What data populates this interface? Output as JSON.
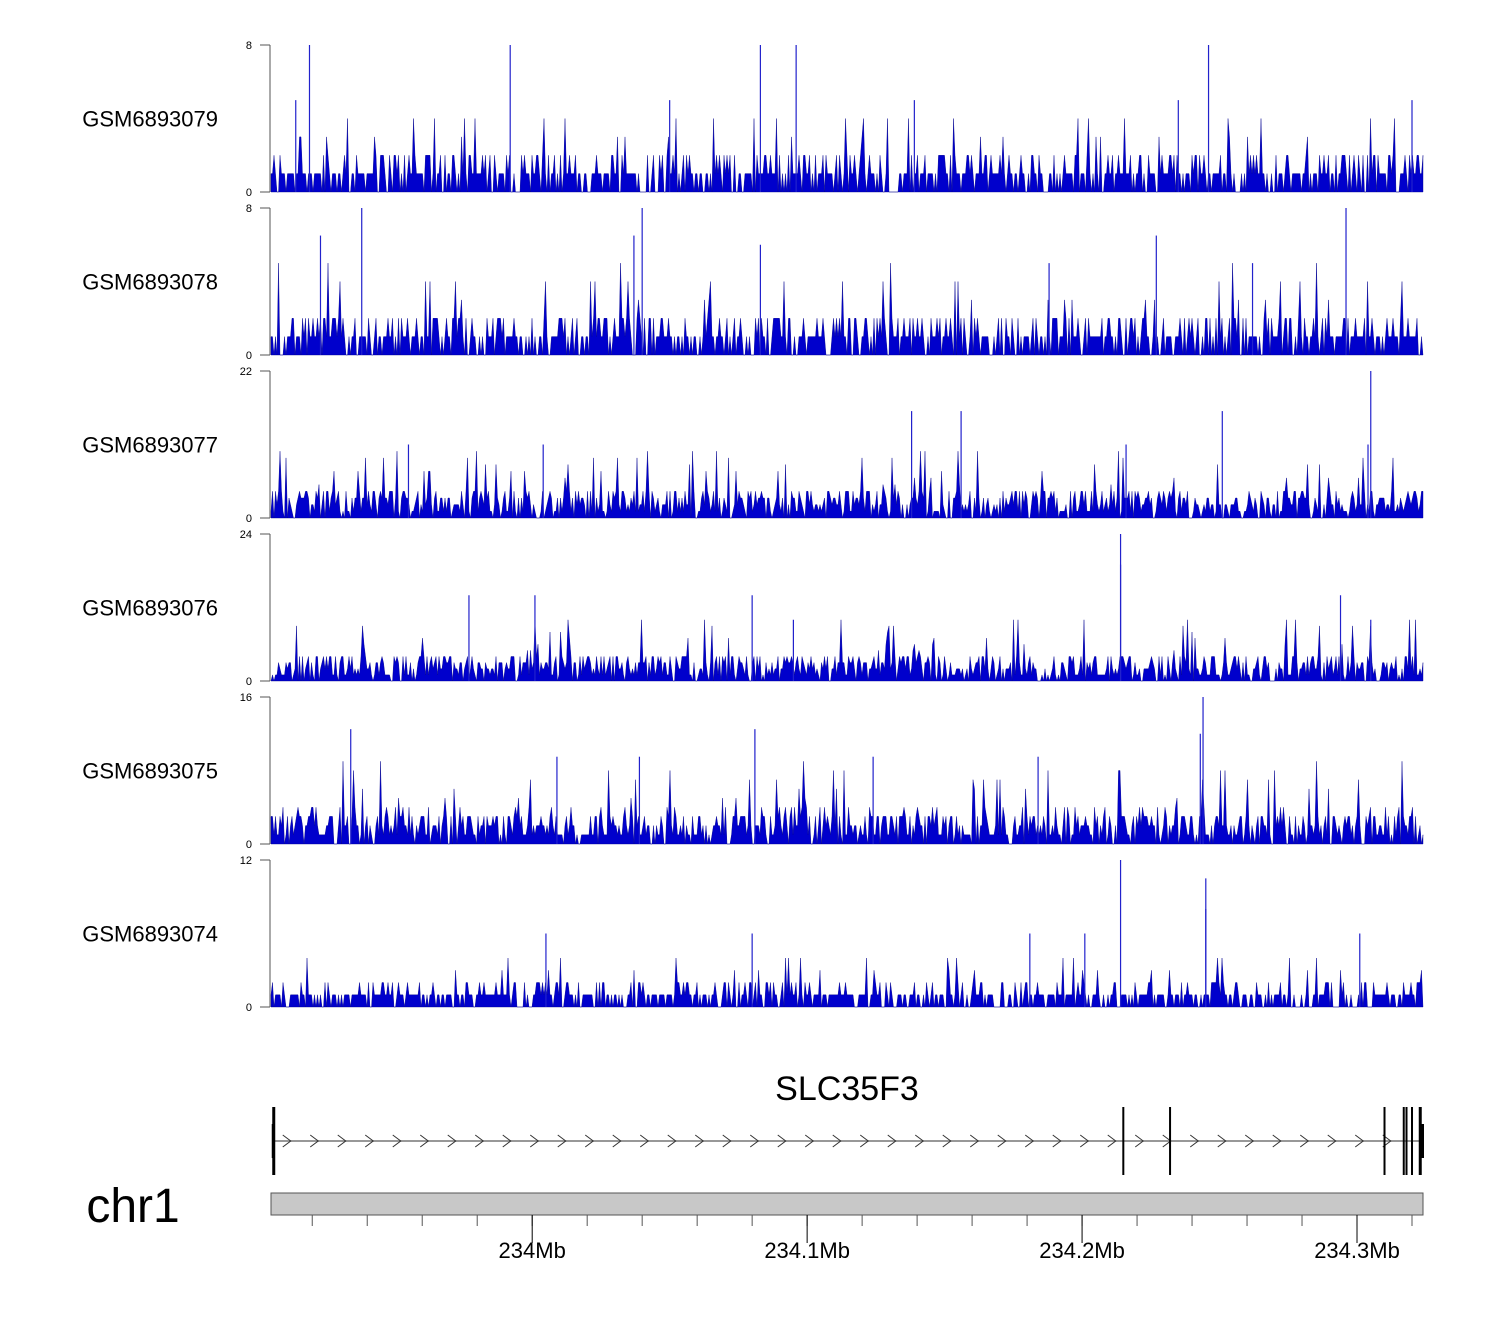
{
  "chart_data": {
    "type": "bar",
    "title": "",
    "chromosome": "chr1",
    "xlim_mb": [
      233.905,
      234.324
    ],
    "x_ticks": [
      {
        "value": 234.0,
        "label": "234Mb"
      },
      {
        "value": 234.1,
        "label": "234.1Mb"
      },
      {
        "value": 234.2,
        "label": "234.2Mb"
      },
      {
        "value": 234.3,
        "label": "234.3Mb"
      }
    ],
    "minor_tick_step_mb": 0.02,
    "color": "#0000cc",
    "tracks": [
      {
        "name": "GSM6893079",
        "ylim": [
          0,
          8
        ],
        "ymin_label": "0",
        "ymax_label": "8",
        "baseline_typical": 1.5,
        "peaks": [
          [
            233.919,
            8
          ],
          [
            233.992,
            8
          ],
          [
            234.083,
            8
          ],
          [
            234.096,
            8
          ],
          [
            234.246,
            8
          ],
          [
            233.914,
            5
          ],
          [
            234.05,
            5
          ],
          [
            234.139,
            5
          ],
          [
            234.235,
            5
          ],
          [
            234.32,
            5
          ]
        ]
      },
      {
        "name": "GSM6893078",
        "ylim": [
          0,
          8
        ],
        "ymin_label": "0",
        "ymax_label": "8",
        "baseline_typical": 1.6,
        "peaks": [
          [
            233.938,
            8
          ],
          [
            234.04,
            8
          ],
          [
            234.296,
            8
          ],
          [
            233.923,
            6.5
          ],
          [
            234.037,
            6.5
          ],
          [
            234.083,
            6
          ],
          [
            234.227,
            6.5
          ],
          [
            234.188,
            5
          ],
          [
            234.262,
            5
          ]
        ]
      },
      {
        "name": "GSM6893077",
        "ylim": [
          0,
          22
        ],
        "ymin_label": "0",
        "ymax_label": "22",
        "baseline_typical": 3.5,
        "peaks": [
          [
            234.305,
            22
          ],
          [
            234.138,
            16
          ],
          [
            234.156,
            16
          ],
          [
            234.251,
            16
          ],
          [
            233.955,
            11
          ],
          [
            234.004,
            11
          ],
          [
            234.216,
            11
          ],
          [
            234.304,
            11
          ]
        ]
      },
      {
        "name": "GSM6893076",
        "ylim": [
          0,
          24
        ],
        "ymin_label": "0",
        "ymax_label": "24",
        "baseline_typical": 3.5,
        "peaks": [
          [
            234.214,
            24
          ],
          [
            234.214,
            19
          ],
          [
            233.977,
            14
          ],
          [
            234.001,
            14
          ],
          [
            234.08,
            14
          ],
          [
            234.294,
            14
          ],
          [
            234.095,
            10
          ],
          [
            234.305,
            10
          ]
        ]
      },
      {
        "name": "GSM6893075",
        "ylim": [
          0,
          16
        ],
        "ymin_label": "0",
        "ymax_label": "16",
        "baseline_typical": 3,
        "peaks": [
          [
            234.244,
            16
          ],
          [
            233.934,
            12.5
          ],
          [
            234.081,
            12.5
          ],
          [
            234.124,
            9.5
          ],
          [
            234.009,
            9.5
          ],
          [
            234.039,
            9.5
          ],
          [
            234.184,
            9.5
          ],
          [
            234.243,
            12
          ]
        ]
      },
      {
        "name": "GSM6893074",
        "ylim": [
          0,
          12
        ],
        "ymin_label": "0",
        "ymax_label": "12",
        "baseline_typical": 1.4,
        "peaks": [
          [
            234.214,
            12
          ],
          [
            234.245,
            10.5
          ],
          [
            234.245,
            8
          ],
          [
            234.005,
            6
          ],
          [
            234.181,
            6
          ],
          [
            234.08,
            6
          ],
          [
            234.201,
            6
          ],
          [
            234.301,
            6
          ]
        ]
      }
    ],
    "gene": {
      "name": "SLC35F3",
      "start_mb": 233.906,
      "end_mb": 234.324,
      "strand": "+",
      "exons_mb": [
        233.906,
        234.215,
        234.232,
        234.31,
        234.317,
        234.318,
        234.32,
        234.323
      ]
    }
  }
}
